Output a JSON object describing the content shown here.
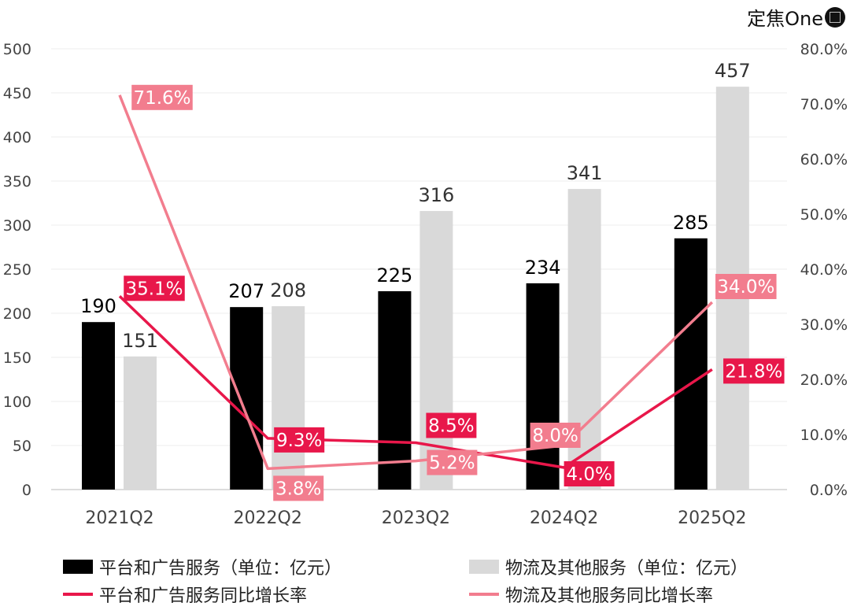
{
  "logo": {
    "text": "定焦One"
  },
  "chart_data": {
    "type": "bar+line",
    "categories": [
      "2021Q2",
      "2022Q2",
      "2023Q2",
      "2024Q2",
      "2025Q2"
    ],
    "left_axis": {
      "ylim": [
        0,
        500
      ],
      "ticks": [
        "0",
        "50",
        "100",
        "150",
        "200",
        "250",
        "300",
        "350",
        "400",
        "450",
        "500"
      ]
    },
    "right_axis": {
      "ylim": [
        0,
        80
      ],
      "ticks": [
        "0.0%",
        "10.0%",
        "20.0%",
        "30.0%",
        "40.0%",
        "50.0%",
        "60.0%",
        "70.0%",
        "80.0%"
      ]
    },
    "grid": true,
    "legend_placement": "bottom",
    "series": [
      {
        "name": "平台和广告服务（单位：亿元）",
        "type": "bar",
        "axis": "left",
        "color": "#000000",
        "values": [
          190,
          207,
          225,
          234,
          285
        ],
        "labels": [
          "190",
          "207",
          "225",
          "234",
          "285"
        ]
      },
      {
        "name": "物流及其他服务（单位：亿元）",
        "type": "bar",
        "axis": "left",
        "color": "#d9d9d9",
        "values": [
          151,
          208,
          316,
          341,
          457
        ],
        "labels": [
          "151",
          "208",
          "316",
          "341",
          "457"
        ]
      },
      {
        "name": "平台和广告服务同比增长率",
        "type": "line",
        "axis": "right",
        "color": "#e8174a",
        "values": [
          35.1,
          9.3,
          8.5,
          4.0,
          21.8
        ],
        "labels": [
          "35.1%",
          "9.3%",
          "8.5%",
          "4.0%",
          "21.8%"
        ]
      },
      {
        "name": "物流及其他服务同比增长率",
        "type": "line",
        "axis": "right",
        "color": "#f27d8e",
        "values": [
          71.6,
          3.8,
          5.2,
          8.0,
          34.0
        ],
        "labels": [
          "71.6%",
          "3.8%",
          "5.2%",
          "8.0%",
          "34.0%"
        ]
      }
    ]
  }
}
